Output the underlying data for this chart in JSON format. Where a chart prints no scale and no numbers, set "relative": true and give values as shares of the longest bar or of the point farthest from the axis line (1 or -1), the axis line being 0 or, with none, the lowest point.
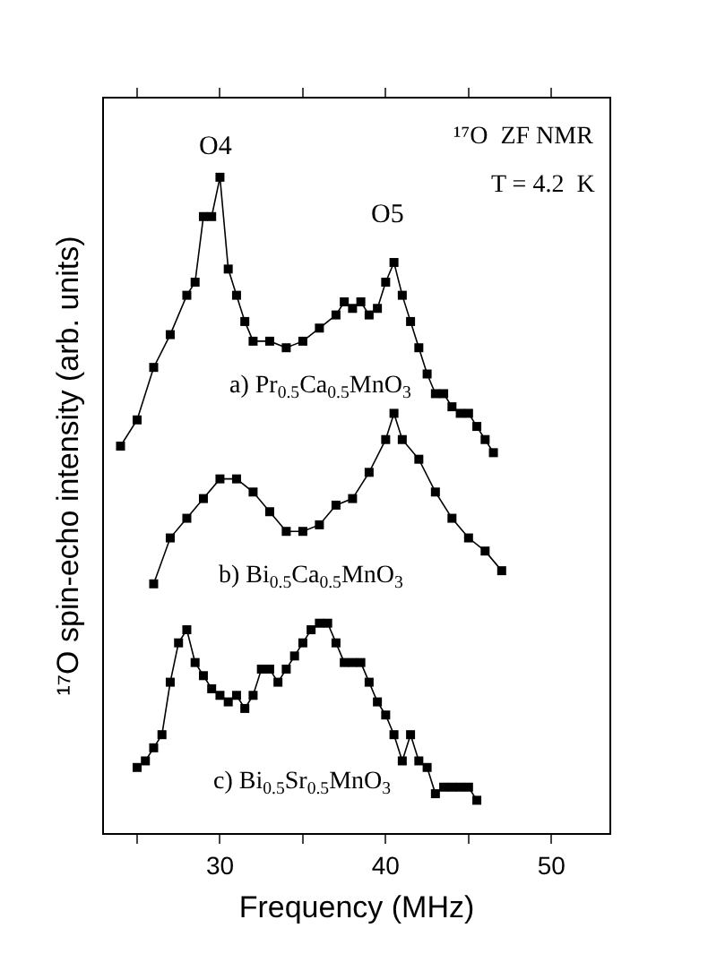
{
  "chart_data": {
    "type": "line",
    "relative": true,
    "xlabel": "Frequency (MHz)",
    "ylabel": "¹⁷O spin-echo intensity (arb. units)",
    "xlim": [
      23,
      53.5
    ],
    "xticks": [
      {
        "value": 25,
        "label": null
      },
      30,
      {
        "value": 35,
        "label": null
      },
      40,
      {
        "value": 45,
        "label": null
      },
      50
    ],
    "marker": "square",
    "line_style": "solid",
    "grid": false,
    "legend": false,
    "annotations": [
      "O4",
      "O5",
      "¹⁷O  ZF NMR",
      "T = 4.2  K"
    ],
    "series": [
      {
        "name": "a) Pr$_{0.5}$Ca$_{0.5}$MnO$_{3}$",
        "color": "#000000",
        "x": [
          24,
          25,
          26,
          27,
          28,
          28.5,
          29,
          29.5,
          30,
          30.5,
          31,
          31.5,
          32,
          33,
          34,
          35,
          36,
          37,
          37.5,
          38,
          38.5,
          39,
          39.5,
          40,
          40.5,
          41,
          41.5,
          42,
          42.5,
          43,
          43.5,
          44,
          44.5,
          45,
          45.5,
          46,
          46.5
        ],
        "values": [
          0.59,
          0.63,
          0.71,
          0.76,
          0.82,
          0.84,
          0.94,
          0.94,
          1.0,
          0.86,
          0.82,
          0.78,
          0.75,
          0.75,
          0.74,
          0.75,
          0.77,
          0.79,
          0.81,
          0.8,
          0.81,
          0.79,
          0.8,
          0.84,
          0.87,
          0.82,
          0.78,
          0.74,
          0.7,
          0.67,
          0.67,
          0.65,
          0.64,
          0.64,
          0.62,
          0.6,
          0.58
        ]
      },
      {
        "name": "b) Bi$_{0.5}$Ca$_{0.5}$MnO$_{3}$",
        "color": "#000000",
        "x": [
          26,
          27,
          28,
          29,
          30,
          31,
          32,
          33,
          34,
          35,
          36,
          37,
          38,
          39,
          40,
          40.5,
          41,
          42,
          43,
          44,
          45,
          46,
          47
        ],
        "values": [
          0.38,
          0.45,
          0.48,
          0.51,
          0.54,
          0.54,
          0.52,
          0.49,
          0.46,
          0.46,
          0.47,
          0.5,
          0.51,
          0.55,
          0.6,
          0.64,
          0.6,
          0.57,
          0.52,
          0.48,
          0.45,
          0.43,
          0.4
        ]
      },
      {
        "name": "c) Bi$_{0.5}$Sr$_{0.5}$MnO$_{3}$",
        "color": "#000000",
        "x": [
          25,
          25.5,
          26,
          26.5,
          27,
          27.5,
          28,
          28.5,
          29,
          29.5,
          30,
          30.5,
          31,
          31.5,
          32,
          32.5,
          33,
          33.5,
          34,
          34.5,
          35,
          35.5,
          36,
          36.5,
          37,
          37.5,
          38,
          38.5,
          39,
          39.5,
          40,
          40.5,
          41,
          41.5,
          42,
          42.5,
          43,
          43.5,
          44,
          44.5,
          45,
          45.5
        ],
        "values": [
          0.1,
          0.11,
          0.13,
          0.15,
          0.23,
          0.29,
          0.31,
          0.26,
          0.24,
          0.22,
          0.21,
          0.2,
          0.21,
          0.19,
          0.21,
          0.25,
          0.25,
          0.23,
          0.25,
          0.27,
          0.29,
          0.31,
          0.32,
          0.32,
          0.29,
          0.26,
          0.26,
          0.26,
          0.23,
          0.2,
          0.18,
          0.15,
          0.11,
          0.15,
          0.11,
          0.1,
          0.06,
          0.07,
          0.07,
          0.07,
          0.07,
          0.05
        ]
      }
    ]
  }
}
